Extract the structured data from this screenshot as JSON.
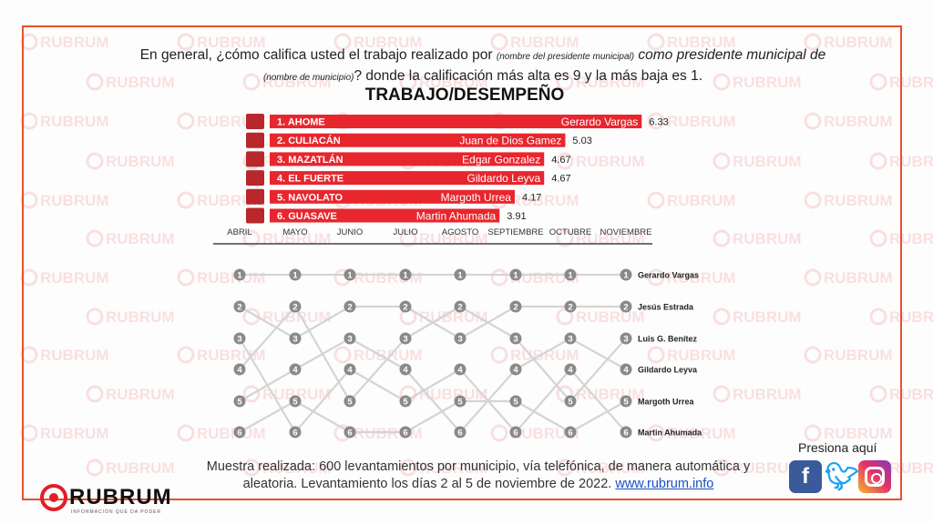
{
  "question": {
    "part1": "En general, ¿cómo califica usted el trabajo realizado por",
    "note1": "(nombre del presidente municipal)",
    "part2": "como presidente municipal de",
    "note2": "(nombre de municipio)",
    "part3": "? donde la calificación más alta es 9 y la más baja es 1."
  },
  "chart_title": "TRABAJO/DESEMPEÑO",
  "watermark_text": "RUBRUM",
  "colors": {
    "bar": "#e8262e",
    "line": "#d4d4d4",
    "node": "#8a8a8a",
    "frame": "#e8502a"
  },
  "chart_data": [
    {
      "type": "bar",
      "orientation": "horizontal",
      "title": "TRABAJO/DESEMPEÑO",
      "categories": [
        "1. AHOME",
        "2. CULIACÁN",
        "3. MAZATLÁN",
        "4. EL FUERTE",
        "5. NAVOLATO",
        "6. GUASAVE"
      ],
      "names": [
        "Gerardo Vargas",
        "Juan de Dios Gamez",
        "Edgar Gonzalez",
        "Gildardo Leyva",
        "Margoth Urrea",
        "Martin Ahumada"
      ],
      "values": [
        6.33,
        5.03,
        4.67,
        4.67,
        4.17,
        3.91
      ],
      "value_labels": [
        "6.33",
        "5.03",
        "4.67",
        "4.67",
        "4.17",
        "3.91"
      ],
      "xlim": [
        0,
        6.5
      ]
    },
    {
      "type": "line",
      "subtype": "bump",
      "x": [
        "ABRIL",
        "MAYO",
        "JUNIO",
        "JULIO",
        "AGOSTO",
        "SEPTIEMBRE",
        "OCTUBRE",
        "NOVIEMBRE"
      ],
      "rank_labels": [
        "1",
        "2",
        "3",
        "4",
        "5",
        "6"
      ],
      "final_labels": [
        "Gerardo Vargas",
        "Jesús Estrada",
        "Luis G. Benítez",
        "Gildardo Leyva",
        "Margoth Urrea",
        "Martin Ahumada"
      ],
      "links": [
        [
          [
            1,
            1
          ],
          [
            2,
            3
          ],
          [
            3,
            6
          ],
          [
            4,
            2
          ],
          [
            5,
            4
          ],
          [
            6,
            5
          ]
        ],
        [
          [
            1,
            1
          ],
          [
            2,
            5
          ],
          [
            3,
            2
          ],
          [
            4,
            3
          ],
          [
            5,
            6
          ],
          [
            6,
            4
          ]
        ],
        [
          [
            1,
            1
          ],
          [
            2,
            2
          ],
          [
            3,
            4
          ],
          [
            4,
            5
          ],
          [
            5,
            3
          ],
          [
            6,
            6
          ]
        ],
        [
          [
            1,
            1
          ],
          [
            2,
            3
          ],
          [
            3,
            2
          ],
          [
            4,
            6
          ],
          [
            5,
            4
          ],
          [
            6,
            5
          ]
        ],
        [
          [
            1,
            1
          ],
          [
            2,
            3
          ],
          [
            3,
            2
          ],
          [
            4,
            6
          ],
          [
            5,
            5
          ],
          [
            6,
            4
          ]
        ],
        [
          [
            1,
            1
          ],
          [
            2,
            2
          ],
          [
            3,
            5
          ],
          [
            4,
            3
          ],
          [
            5,
            6
          ],
          [
            6,
            4
          ]
        ],
        [
          [
            1,
            1
          ],
          [
            2,
            2
          ],
          [
            3,
            4
          ],
          [
            4,
            6
          ],
          [
            5,
            3
          ],
          [
            6,
            5
          ]
        ]
      ]
    }
  ],
  "footer": {
    "text": "Muestra realizada: 600 levantamientos por municipio, vía telefónica, de manera automática y aleatoria. Levantamiento los días 2 al 5 de noviembre de 2022.",
    "link": "www.rubrum.info"
  },
  "press_here": "Presiona aquí",
  "social_icons": [
    "facebook-icon",
    "twitter-icon",
    "instagram-icon"
  ],
  "logo": {
    "name": "RUBRUM",
    "tagline": "INFORMACIÓN QUE DA PODER"
  }
}
